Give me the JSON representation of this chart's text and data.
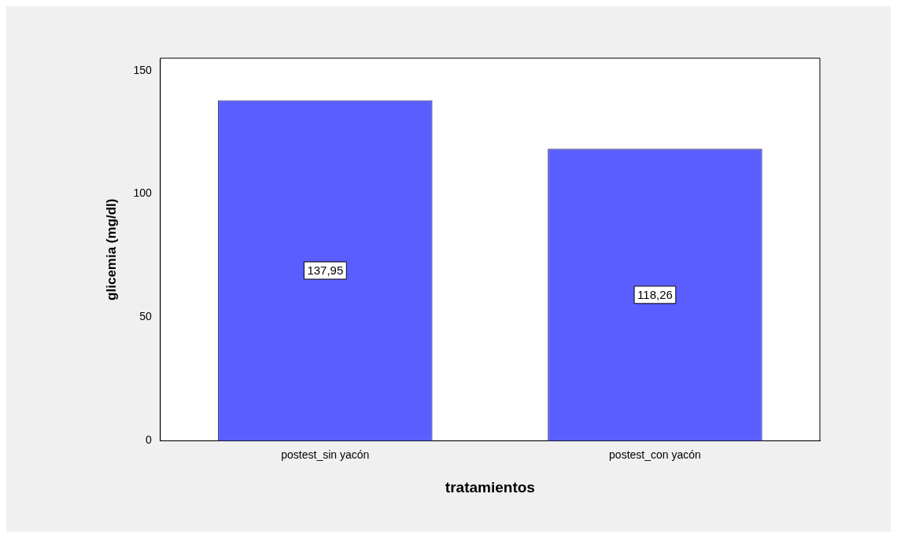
{
  "chart_data": {
    "type": "bar",
    "xlabel": "tratamientos",
    "ylabel": "glicemia (mg/dl)",
    "categories": [
      "postest_sin yacón",
      "postest_con yacón"
    ],
    "values": [
      137.95,
      118.26
    ],
    "color": "#5a5eff",
    "value_labels": [
      "137,95",
      "118,26"
    ],
    "ylim": [
      0,
      155
    ],
    "yticks": [
      0,
      50,
      100,
      150
    ],
    "grid": false,
    "legend": false
  }
}
